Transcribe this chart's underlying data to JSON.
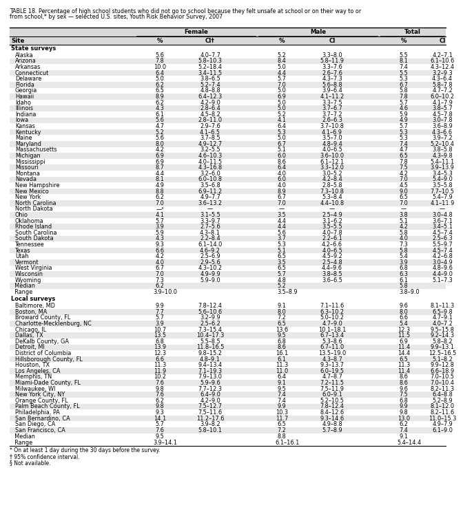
{
  "title_line1": "TABLE 18. Percentage of high school students who did not go to school because they felt unsafe at school or on their way to or",
  "title_line2": "from school,* by sex — selected U.S. sites, Youth Risk Behavior Survey, 2007",
  "state_section_label": "State surveys",
  "local_section_label": "Local surveys",
  "state_rows": [
    [
      "Alaska",
      "5.6",
      "4.0–7.7",
      "5.2",
      "3.3–8.0",
      "5.5",
      "4.2–7.1"
    ],
    [
      "Arizona",
      "7.8",
      "5.8–10.3",
      "8.4",
      "5.8–11.9",
      "8.1",
      "6.1–10.6"
    ],
    [
      "Arkansas",
      "10.0",
      "5.2–18.4",
      "5.0",
      "3.3–7.6",
      "7.4",
      "4.3–12.4"
    ],
    [
      "Connecticut",
      "6.4",
      "3.4–11.5",
      "4.4",
      "2.6–7.6",
      "5.5",
      "3.2–9.3"
    ],
    [
      "Delaware",
      "5.0",
      "3.8–6.5",
      "5.7",
      "4.3–7.3",
      "5.3",
      "4.3–6.4"
    ],
    [
      "Florida",
      "6.2",
      "5.2–7.4",
      "7.0",
      "5.6–8.8",
      "6.7",
      "5.8–7.8"
    ],
    [
      "Georgia",
      "6.5",
      "4.8–8.8",
      "5.0",
      "3.9–6.4",
      "5.8",
      "4.7–7.2"
    ],
    [
      "Hawaii",
      "8.9",
      "6.4–12.3",
      "6.9",
      "4.1–11.2",
      "7.8",
      "6.0–10.2"
    ],
    [
      "Idaho",
      "6.2",
      "4.2–9.0",
      "5.0",
      "3.3–7.5",
      "5.7",
      "4.1–7.9"
    ],
    [
      "Illinois",
      "4.3",
      "2.8–6.4",
      "5.0",
      "3.7–6.7",
      "4.6",
      "3.8–5.7"
    ],
    [
      "Indiana",
      "6.1",
      "4.5–8.2",
      "5.2",
      "3.7–7.2",
      "5.9",
      "4.5–7.8"
    ],
    [
      "Iowa",
      "5.6",
      "2.8–11.0",
      "4.1",
      "2.6–6.3",
      "4.9",
      "3.0–7.8"
    ],
    [
      "Kansas",
      "4.7",
      "2.9–7.6",
      "6.4",
      "3.7–10.8",
      "5.7",
      "3.6–8.9"
    ],
    [
      "Kentucky",
      "5.2",
      "4.1–6.5",
      "5.3",
      "4.1–6.9",
      "5.3",
      "4.3–6.6"
    ],
    [
      "Maine",
      "5.6",
      "3.7–8.5",
      "5.0",
      "3.5–7.0",
      "5.3",
      "3.9–7.2"
    ],
    [
      "Maryland",
      "8.0",
      "4.9–12.7",
      "6.7",
      "4.8–9.4",
      "7.4",
      "5.2–10.4"
    ],
    [
      "Massachusetts",
      "4.2",
      "3.2–5.5",
      "5.1",
      "4.0–6.5",
      "4.7",
      "3.8–5.8"
    ],
    [
      "Michigan",
      "6.9",
      "4.6–10.3",
      "6.0",
      "3.6–10.0",
      "6.5",
      "4.3–9.8"
    ],
    [
      "Mississippi",
      "6.9",
      "4.0–11.5",
      "8.6",
      "6.1–12.1",
      "7.8",
      "5.4–11.1"
    ],
    [
      "Missouri",
      "8.7",
      "4.3–16.8",
      "6.4",
      "3.3–12.0",
      "7.5",
      "3.9–13.9"
    ],
    [
      "Montana",
      "4.4",
      "3.2–6.0",
      "4.0",
      "3.0–5.2",
      "4.2",
      "3.4–5.3"
    ],
    [
      "Nevada",
      "8.1",
      "6.0–10.8",
      "6.0",
      "4.2–8.4",
      "7.0",
      "5.4–9.0"
    ],
    [
      "New Hampshire",
      "4.9",
      "3.5–6.8",
      "4.0",
      "2.8–5.8",
      "4.5",
      "3.5–5.8"
    ],
    [
      "New Mexico",
      "8.8",
      "6.9–11.2",
      "8.9",
      "7.3–10.8",
      "9.0",
      "7.7–10.5"
    ],
    [
      "New York",
      "6.2",
      "4.9–7.7",
      "6.7",
      "5.3–8.4",
      "6.5",
      "5.4–7.9"
    ],
    [
      "North Carolina",
      "7.0",
      "3.6–13.2",
      "7.0",
      "4.4–10.8",
      "7.0",
      "4.1–11.9"
    ],
    [
      "North Dakota",
      "—³",
      "—",
      "—",
      "—",
      "—",
      "—"
    ],
    [
      "Ohio",
      "4.1",
      "3.1–5.5",
      "3.5",
      "2.5–4.9",
      "3.8",
      "3.0–4.8"
    ],
    [
      "Oklahoma",
      "5.7",
      "3.3–9.7",
      "4.4",
      "3.1–6.2",
      "5.1",
      "3.6–7.1"
    ],
    [
      "Rhode Island",
      "3.9",
      "2.7–5.6",
      "4.4",
      "3.5–5.5",
      "4.2",
      "3.4–5.1"
    ],
    [
      "South Carolina",
      "5.9",
      "4.3–8.1",
      "5.6",
      "4.0–7.8",
      "5.8",
      "4.5–7.4"
    ],
    [
      "South Dakota",
      "4.3",
      "2.2–8.4",
      "3.7",
      "2.2–6.1",
      "4.0",
      "2.5–6.3"
    ],
    [
      "Tennessee",
      "9.3",
      "6.1–14.0",
      "5.3",
      "4.2–6.6",
      "7.3",
      "5.5–9.7"
    ],
    [
      "Texas",
      "6.6",
      "4.6–9.2",
      "5.1",
      "4.0–6.5",
      "5.8",
      "4.5–7.4"
    ],
    [
      "Utah",
      "4.2",
      "2.5–6.9",
      "6.5",
      "4.5–9.2",
      "5.4",
      "4.2–6.8"
    ],
    [
      "Vermont",
      "4.0",
      "2.9–5.6",
      "3.5",
      "2.5–4.8",
      "3.9",
      "3.0–4.9"
    ],
    [
      "West Virginia",
      "6.7",
      "4.3–10.2",
      "6.5",
      "4.4–9.6",
      "6.8",
      "4.8–9.6"
    ],
    [
      "Wisconsin",
      "7.0",
      "4.9–9.9",
      "5.7",
      "3.8–8.5",
      "6.3",
      "4.4–9.0"
    ],
    [
      "Wyoming",
      "7.3",
      "5.9–9.0",
      "4.8",
      "3.6–6.5",
      "6.1",
      "5.1–7.3"
    ]
  ],
  "state_median": [
    "  Median",
    "6.2",
    "",
    "5.2",
    "",
    "5.8",
    ""
  ],
  "state_range": [
    "  Range",
    "3.9–10.0",
    "",
    "3.5–8.9",
    "",
    "3.8–9.0",
    ""
  ],
  "local_rows": [
    [
      "Baltimore, MD",
      "9.9",
      "7.8–12.4",
      "9.1",
      "7.1–11.6",
      "9.6",
      "8.1–11.3"
    ],
    [
      "Boston, MA",
      "7.7",
      "5.6–10.6",
      "8.0",
      "6.3–10.2",
      "8.0",
      "6.5–9.8"
    ],
    [
      "Broward County, FL",
      "5.7",
      "3.2–9.9",
      "7.2",
      "5.0–10.2",
      "6.6",
      "4.7–9.1"
    ],
    [
      "Charlotte-Mecklenburg, NC",
      "3.9",
      "2.5–6.2",
      "6.5",
      "4.7–9.0",
      "5.4",
      "4.0–7.2"
    ],
    [
      "Chicago, IL",
      "10.7",
      "7.3–15.4",
      "13.6",
      "10.1–18.1",
      "12.3",
      "9.5–15.8"
    ],
    [
      "Dallas, TX",
      "13.5",
      "10.4–17.3",
      "9.5",
      "6.7–13.4",
      "11.5",
      "9.2–14.3"
    ],
    [
      "DeKalb County, GA",
      "6.8",
      "5.5–8.5",
      "6.8",
      "5.3–8.6",
      "6.9",
      "5.8–8.2"
    ],
    [
      "Detroit, MI",
      "13.9",
      "11.8–16.5",
      "8.6",
      "6.7–11.0",
      "11.4",
      "9.9–13.1"
    ],
    [
      "District of Columbia",
      "12.3",
      "9.8–15.2",
      "16.1",
      "13.5–19.0",
      "14.4",
      "12.5–16.5"
    ],
    [
      "Hillsborough County, FL",
      "6.6",
      "4.8–9.1",
      "6.1",
      "4.3–8.7",
      "6.5",
      "5.1–8.2"
    ],
    [
      "Houston, TX",
      "11.3",
      "9.4–13.4",
      "11.3",
      "9.3–13.7",
      "11.3",
      "9.9–12.8"
    ],
    [
      "Los Angeles, CA",
      "11.9",
      "7.1–19.3",
      "11.0",
      "6.0–19.5",
      "11.4",
      "6.6–18.9"
    ],
    [
      "Memphis, TN",
      "10.2",
      "7.9–13.0",
      "6.4",
      "4.7–8.7",
      "8.6",
      "7.0–10.5"
    ],
    [
      "Miami-Dade County, FL",
      "7.6",
      "5.9–9.6",
      "9.1",
      "7.2–11.5",
      "8.6",
      "7.0–10.4"
    ],
    [
      "Milwaukee, WI",
      "9.8",
      "7.7–12.3",
      "9.5",
      "7.5–11.9",
      "9.6",
      "8.2–11.3"
    ],
    [
      "New York City, NY",
      "7.6",
      "6.4–9.0",
      "7.4",
      "6.0–9.1",
      "7.5",
      "6.4–8.8"
    ],
    [
      "Orange County, FL",
      "6.2",
      "4.2–9.0",
      "7.4",
      "5.2–10.5",
      "6.8",
      "5.2–8.9"
    ],
    [
      "Palm Beach County, FL",
      "9.8",
      "7.5–12.7",
      "9.9",
      "7.8–12.4",
      "9.9",
      "8.1–12.0"
    ],
    [
      "Philadelphia, PA",
      "9.3",
      "7.5–11.6",
      "10.3",
      "8.4–12.6",
      "9.8",
      "8.2–11.6"
    ],
    [
      "San Bernardino, CA",
      "14.1",
      "11.2–17.6",
      "11.7",
      "9.3–14.6",
      "13.0",
      "11.0–15.3"
    ],
    [
      "San Diego, CA",
      "5.7",
      "3.9–8.2",
      "6.5",
      "4.9–8.8",
      "6.2",
      "4.9–7.9"
    ],
    [
      "San Francisco, CA",
      "7.6",
      "5.8–10.1",
      "7.2",
      "5.7–8.9",
      "7.4",
      "6.1–9.0"
    ]
  ],
  "local_median": [
    "  Median",
    "9.5",
    "",
    "8.8",
    "",
    "9.1",
    ""
  ],
  "local_range": [
    "  Range",
    "3.9–14.1",
    "",
    "6.1–16.1",
    "",
    "5.4–14.4",
    ""
  ],
  "footnotes": [
    "* On at least 1 day during the 30 days before the survey.",
    "† 95% confidence interval.",
    "§ Not available."
  ],
  "bg_color": "#FFFFFF",
  "header_bg": "#D9D9D9",
  "odd_row_bg": "#FFFFFF",
  "even_row_bg": "#E8E8E8"
}
